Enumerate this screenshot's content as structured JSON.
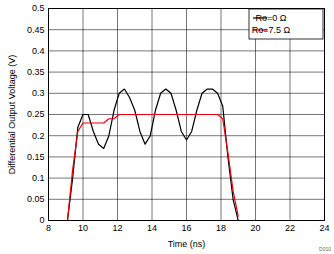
{
  "chart_data": {
    "type": "line",
    "x_label": "Time (ns)",
    "y_label": "Differential Output Voltage (V)",
    "x": [
      9.1,
      9.4,
      9.7,
      10.0,
      10.3,
      10.6,
      10.9,
      11.2,
      11.5,
      11.8,
      12.1,
      12.4,
      12.7,
      13.0,
      13.3,
      13.6,
      13.9,
      14.2,
      14.5,
      14.8,
      15.1,
      15.4,
      15.7,
      16.0,
      16.3,
      16.6,
      16.9,
      17.2,
      17.5,
      17.8,
      18.1,
      18.4,
      18.7,
      19.0
    ],
    "series": [
      {
        "name": "Ro=0 Ω",
        "color": "#000000",
        "values": [
          0,
          0.1,
          0.22,
          0.25,
          0.25,
          0.21,
          0.18,
          0.17,
          0.2,
          0.26,
          0.3,
          0.31,
          0.29,
          0.26,
          0.21,
          0.18,
          0.2,
          0.26,
          0.3,
          0.31,
          0.3,
          0.26,
          0.21,
          0.19,
          0.21,
          0.26,
          0.3,
          0.31,
          0.31,
          0.3,
          0.27,
          0.15,
          0.05,
          0
        ]
      },
      {
        "name": "Ro=7.5 Ω",
        "color": "#e8000b",
        "values": [
          0,
          0.12,
          0.21,
          0.23,
          0.23,
          0.23,
          0.23,
          0.23,
          0.24,
          0.24,
          0.25,
          0.25,
          0.25,
          0.25,
          0.25,
          0.25,
          0.25,
          0.25,
          0.25,
          0.25,
          0.25,
          0.25,
          0.25,
          0.25,
          0.25,
          0.25,
          0.25,
          0.25,
          0.25,
          0.25,
          0.24,
          0.16,
          0.07,
          0.01
        ]
      }
    ],
    "xlim": [
      8,
      24
    ],
    "xticks": [
      8,
      10,
      12,
      14,
      16,
      18,
      20,
      22,
      24
    ],
    "ylim": [
      0,
      0.5
    ],
    "yticks": [
      0,
      0.05,
      0.1,
      0.15,
      0.2,
      0.25,
      0.3,
      0.35,
      0.4,
      0.45,
      0.5
    ],
    "grid": true,
    "legend": "top-right",
    "annotations": [
      "D010"
    ]
  }
}
